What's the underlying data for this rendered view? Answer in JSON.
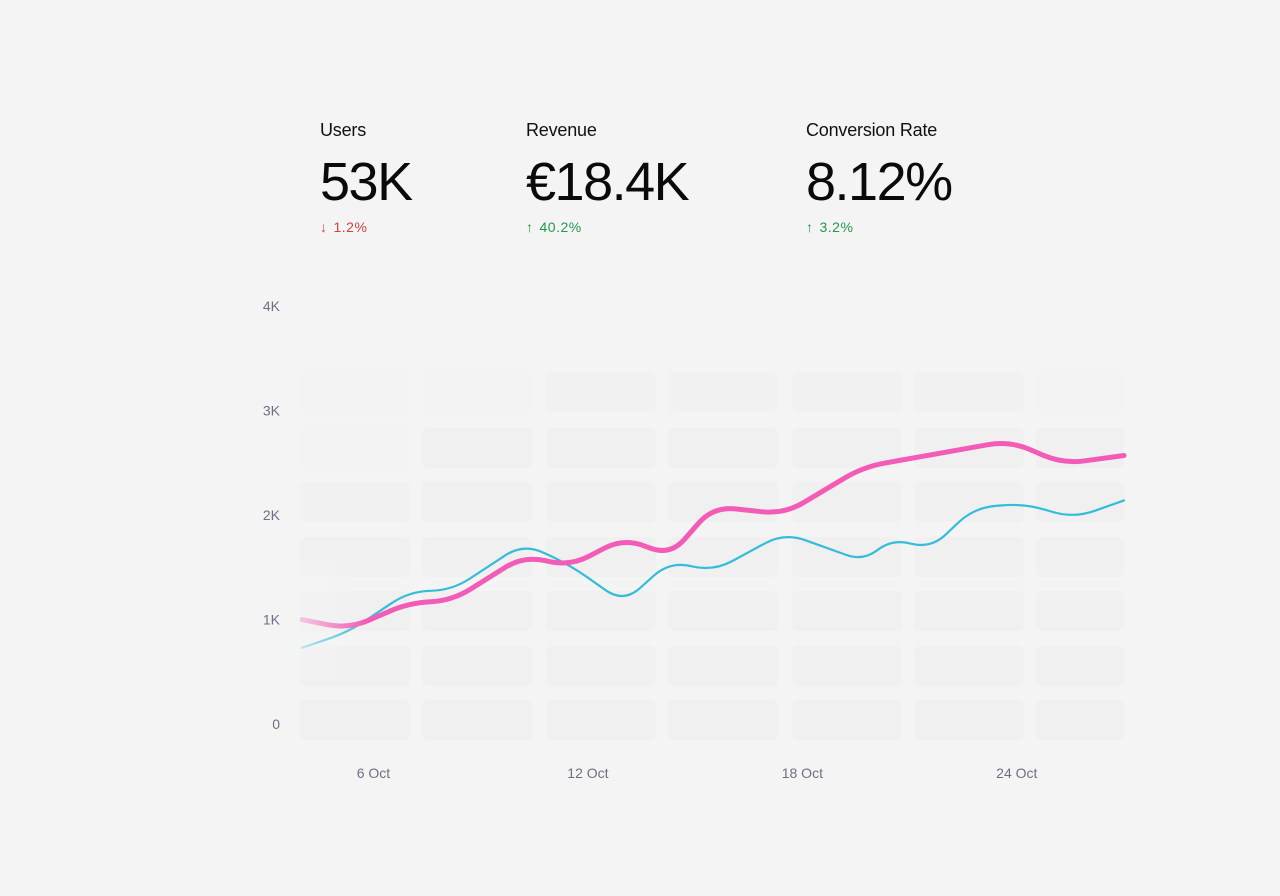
{
  "metrics": [
    {
      "label": "Users",
      "value": "53K",
      "change": "1.2%",
      "direction": "down",
      "color": "#d64040"
    },
    {
      "label": "Revenue",
      "value": "€18.4K",
      "change": "40.2%",
      "direction": "up",
      "color": "#1f9a4d"
    },
    {
      "label": "Conversion Rate",
      "value": "8.12%",
      "change": "3.2%",
      "direction": "up",
      "color": "#1f9a4d"
    }
  ],
  "chart_data": {
    "type": "line",
    "title": "",
    "xlabel": "",
    "ylabel": "",
    "ylim": [
      0,
      4000
    ],
    "yticks": [
      0,
      1000,
      2000,
      3000,
      4000
    ],
    "ytick_labels": [
      "0",
      "1K",
      "2K",
      "3K",
      "4K"
    ],
    "xlim": [
      4,
      27
    ],
    "xticks": [
      6,
      12,
      18,
      24
    ],
    "xtick_labels": [
      "6 Oct",
      "12 Oct",
      "18 Oct",
      "24 Oct"
    ],
    "grid": false,
    "series": [
      {
        "color": "#f25cb6",
        "x": [
          4,
          5.3,
          7,
          8.2,
          10.2,
          11.5,
          13,
          14.3,
          15.5,
          17.5,
          19.7,
          23.8,
          25.3,
          27
        ],
        "values": [
          990,
          900,
          1150,
          1170,
          1600,
          1500,
          1770,
          1600,
          2070,
          2000,
          2450,
          2700,
          2480,
          2560
        ]
      },
      {
        "color": "#35bcd9",
        "x": [
          4,
          5.3,
          7,
          8.2,
          10.2,
          11.5,
          13,
          14.3,
          15.5,
          17.5,
          19.7,
          20.5,
          21.6,
          22.8,
          24.2,
          25.6,
          27
        ],
        "values": [
          720,
          870,
          1260,
          1270,
          1720,
          1510,
          1150,
          1550,
          1450,
          1820,
          1550,
          1760,
          1670,
          2060,
          2100,
          1960,
          2130
        ]
      }
    ]
  }
}
